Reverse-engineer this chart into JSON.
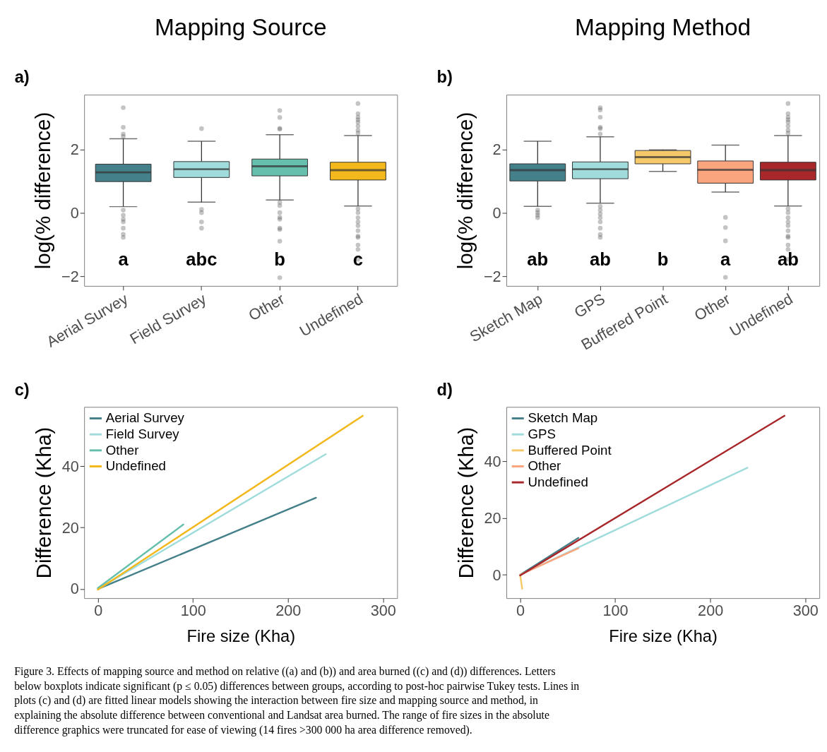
{
  "chart_data": [
    {
      "type": "box",
      "title": "Mapping Source",
      "ylabel": "log(% difference)",
      "categories": [
        "Aerial Survey",
        "Field Survey",
        "Other",
        "Undefined"
      ],
      "colors": [
        "#44808a",
        "#a0dcdc",
        "#66bfad",
        "#f2b81c"
      ],
      "ylim": [
        -2.3,
        3.73
      ],
      "yticks": [
        -2,
        0,
        2
      ],
      "grid": false,
      "boxes": [
        {
          "low": 0.2,
          "q1": 0.99,
          "median": 1.28,
          "q3": 1.54,
          "high": 2.34,
          "outliers": [
            3.32,
            2.7,
            2.49,
            2.41,
            0.09,
            -0.07,
            -0.2,
            -0.28,
            -0.48,
            -0.67,
            -0.77
          ]
        },
        {
          "low": 0.34,
          "q1": 1.12,
          "median": 1.38,
          "q3": 1.62,
          "high": 2.26,
          "outliers": [
            2.66,
            0.11,
            0.01,
            -0.28,
            -0.48
          ]
        },
        {
          "low": 0.41,
          "q1": 1.17,
          "median": 1.47,
          "q3": 1.7,
          "high": 2.47,
          "outliers": [
            3.23,
            3.01,
            2.67,
            2.64,
            0.33,
            0.23,
            0.01,
            -0.14,
            -0.2,
            -0.48,
            -0.52,
            -0.89,
            -2.04
          ]
        },
        {
          "low": 0.22,
          "q1": 1.04,
          "median": 1.35,
          "q3": 1.6,
          "high": 2.44,
          "outliers": [
            3.45,
            3.13,
            3.02,
            2.94,
            2.86,
            2.74,
            2.61,
            2.52,
            0.13,
            0.01,
            -0.15,
            -0.28,
            -0.4,
            -0.56,
            -0.73,
            -0.77,
            -1.01,
            -1.15,
            -1.46
          ]
        }
      ],
      "annotations": [
        "a)",
        "a",
        "abc",
        "b",
        "c"
      ]
    },
    {
      "type": "box",
      "title": "Mapping Method",
      "ylabel": "log(% difference)",
      "categories": [
        "Sketch Map",
        "GPS",
        "Buffered Point",
        "Other",
        "Undefined"
      ],
      "colors": [
        "#44808a",
        "#a0dcdc",
        "#f5c96a",
        "#fba57f",
        "#a8272b"
      ],
      "ylim": [
        -2.3,
        3.73
      ],
      "yticks": [
        -2,
        0,
        2
      ],
      "grid": false,
      "boxes": [
        {
          "low": 0.21,
          "q1": 1.01,
          "median": 1.35,
          "q3": 1.55,
          "high": 2.26,
          "outliers": [
            0.09,
            0.01,
            -0.07,
            -0.15
          ]
        },
        {
          "low": 0.31,
          "q1": 1.08,
          "median": 1.38,
          "q3": 1.61,
          "high": 2.4,
          "outliers": [
            3.32,
            3.25,
            3.02,
            2.7,
            2.66,
            2.49,
            0.21,
            0.09,
            -0.03,
            -0.15,
            -0.28,
            -0.48,
            -0.68,
            -0.77
          ]
        },
        {
          "low": 1.31,
          "q1": 1.55,
          "median": 1.76,
          "q3": 1.97,
          "high": 1.99
        },
        {
          "low": 0.66,
          "q1": 0.94,
          "median": 1.36,
          "q3": 1.64,
          "high": 2.14,
          "outliers": [
            -0.14,
            -0.46,
            -0.88,
            -2.03
          ]
        },
        {
          "low": 0.22,
          "q1": 1.04,
          "median": 1.35,
          "q3": 1.6,
          "high": 2.44,
          "outliers": [
            3.45,
            3.13,
            3.02,
            2.94,
            2.86,
            2.74,
            2.61,
            2.52,
            0.13,
            0.01,
            -0.15,
            -0.28,
            -0.4,
            -0.56,
            -0.73,
            -0.77,
            -1.01,
            -1.15,
            -1.46
          ]
        }
      ],
      "annotations": [
        "b)",
        "ab",
        "ab",
        "b",
        "a",
        "ab"
      ]
    },
    {
      "type": "line",
      "xlabel": "Fire size (Kha)",
      "ylabel": "Difference (Kha)",
      "xlim": [
        -14.5,
        314.9
      ],
      "ylim": [
        -3.0,
        59.3
      ],
      "xticks": [
        0,
        100,
        200,
        300
      ],
      "yticks": [
        0,
        20,
        40
      ],
      "grid": false,
      "legend": "top left",
      "line_style": "solid",
      "series": [
        {
          "name": "Aerial Survey",
          "color": "#44808a",
          "x": [
            0,
            229.5
          ],
          "values": [
            0,
            29.7
          ]
        },
        {
          "name": "Field Survey",
          "color": "#a0dcdc",
          "x": [
            0,
            239.7
          ],
          "values": [
            0,
            43.9
          ]
        },
        {
          "name": "Other",
          "color": "#66bfad",
          "x": [
            0,
            89.9
          ],
          "values": [
            0.3,
            21.0
          ]
        },
        {
          "name": "Undefined",
          "color": "#f2b81c",
          "x": [
            0,
            278.7
          ],
          "values": [
            -0.2,
            56.4
          ]
        }
      ],
      "annotations": [
        "c)"
      ]
    },
    {
      "type": "line",
      "xlabel": "Fire size (Kha)",
      "ylabel": "Difference (Kha)",
      "xlim": [
        -14.5,
        314.8
      ],
      "ylim": [
        -8.2,
        59.1
      ],
      "xticks": [
        0,
        100,
        200,
        300
      ],
      "yticks": [
        0,
        20,
        40
      ],
      "grid": false,
      "legend": "top left",
      "line_style": "solid",
      "series": [
        {
          "name": "Sketch Map",
          "color": "#44808a",
          "x": [
            0,
            61.3
          ],
          "values": [
            0,
            13.0
          ]
        },
        {
          "name": "GPS",
          "color": "#a0dcdc",
          "x": [
            0,
            239.2
          ],
          "values": [
            0,
            37.7
          ]
        },
        {
          "name": "Buffered Point",
          "color": "#f5c96a",
          "x": [
            0,
            2.2
          ],
          "values": [
            0,
            -4.9
          ]
        },
        {
          "name": "Other",
          "color": "#fba57f",
          "x": [
            0,
            61.3
          ],
          "values": [
            0,
            9.4
          ]
        },
        {
          "name": "Undefined",
          "color": "#a8272b",
          "x": [
            0,
            278.2
          ],
          "values": [
            -0.2,
            56.0
          ]
        }
      ],
      "annotations": [
        "d)",
        "Figure 3. Effects of mapping source and method on relative ((a) and (b)) and area burned ((c) and (d)) differences. Letters below boxplots indicate significant (p ≤ 0.05) differences between groups, according to post-hoc pairwise Tukey tests. Lines in plots (c) and (d) are fitted linear models showing the interaction between fire size and mapping source and method, in explaining the absolute difference between conventional and Landsat area burned. The range of fire sizes in the absolute difference graphics were truncated for ease of viewing (14 fires >300 000 ha area difference removed)."
      ]
    }
  ]
}
